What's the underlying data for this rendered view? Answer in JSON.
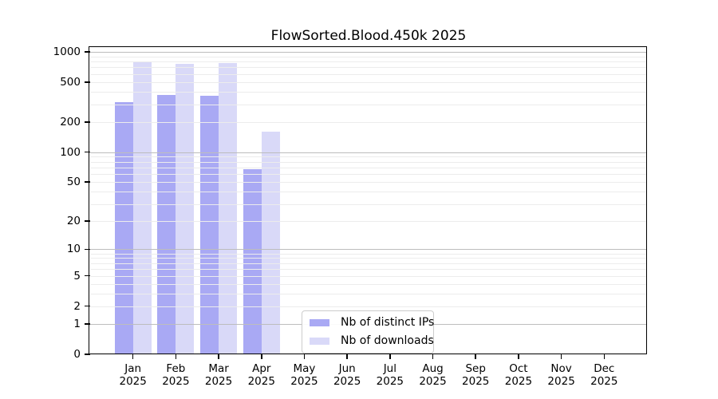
{
  "chart_data": {
    "type": "bar",
    "title": "FlowSorted.Blood.450k 2025",
    "categories": [
      "Jan 2025",
      "Feb 2025",
      "Mar 2025",
      "Apr 2025",
      "May 2025",
      "Jun 2025",
      "Jul 2025",
      "Aug 2025",
      "Sep 2025",
      "Oct 2025",
      "Nov 2025",
      "Dec 2025"
    ],
    "series": [
      {
        "name": "Nb of distinct IPs",
        "key": "distinct-ips",
        "color": "#a9a9f4",
        "values": [
          318,
          372,
          362,
          68,
          null,
          null,
          null,
          null,
          null,
          null,
          null,
          null
        ]
      },
      {
        "name": "Nb of downloads",
        "key": "downloads",
        "color": "#d9d9f8",
        "values": [
          806,
          762,
          775,
          161,
          null,
          null,
          null,
          null,
          null,
          null,
          null,
          null
        ]
      }
    ],
    "yscale": "log1p",
    "yticks": [
      0,
      1,
      2,
      5,
      10,
      20,
      50,
      100,
      200,
      500,
      1000
    ],
    "ylim": [
      0,
      1090
    ],
    "xlabel": "",
    "ylabel": "",
    "grid": "horizontal, log minor gridlines, drawn over bars",
    "legend_position": "lower center"
  },
  "colors": {
    "axis": "#000000",
    "major_grid": "#bdbdbd",
    "minor_grid": "#ececec",
    "legend_border": "#cccccc",
    "background": "#ffffff"
  }
}
